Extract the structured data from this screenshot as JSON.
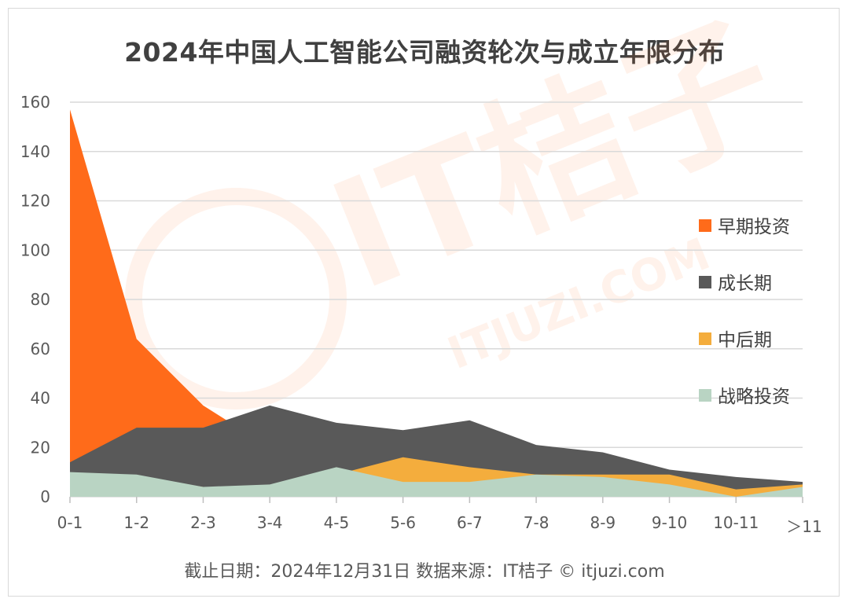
{
  "title": "2024年中国人工智能公司融资轮次与成立年限分布",
  "footer": "截止日期：2024年12月31日    数据来源：IT桔子 © itjuzi.com",
  "watermark": {
    "brand": "IT桔子",
    "url": "ITJUZI.COM"
  },
  "colors": {
    "early": "#ff6b1a",
    "growth": "#595959",
    "late": "#f4ad3d",
    "strategic": "#b9d4c3",
    "grid": "#d9d9d9"
  },
  "chart_data": {
    "type": "area",
    "title": "2024年中国人工智能公司融资轮次与成立年限分布",
    "categories": [
      "0-1",
      "1-2",
      "2-3",
      "3-4",
      "4-5",
      "5-6",
      "6-7",
      "7-8",
      "8-9",
      "9-10",
      "10-11",
      "＞11"
    ],
    "ylim": [
      0,
      160
    ],
    "yticks": [
      0,
      20,
      40,
      60,
      80,
      100,
      120,
      140,
      160
    ],
    "grid": true,
    "legend_position": "right",
    "series": [
      {
        "name": "早期投资",
        "values": [
          157,
          64,
          37,
          20,
          18,
          14,
          12,
          9,
          8,
          6,
          4,
          5
        ]
      },
      {
        "name": "成长期",
        "values": [
          14,
          28,
          28,
          37,
          30,
          27,
          31,
          21,
          18,
          11,
          8,
          6
        ]
      },
      {
        "name": "中后期",
        "values": [
          9,
          8,
          4,
          4,
          9,
          16,
          12,
          9,
          9,
          9,
          3,
          5
        ]
      },
      {
        "name": "战略投资",
        "values": [
          10,
          9,
          4,
          5,
          12,
          6,
          6,
          9,
          8,
          5,
          0,
          4
        ]
      }
    ]
  }
}
